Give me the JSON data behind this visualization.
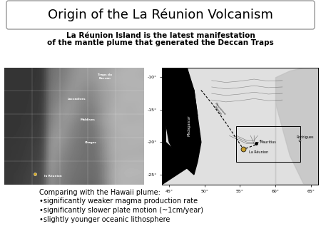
{
  "title": "Origin of the La Réunion Volcanism",
  "subtitle_line1": "La Réunion Island is the latest manifestation",
  "subtitle_line2": "of the mantle plume that generated the Deccan Traps",
  "bullet_header": "Comparing with the Hawaii plume:",
  "bullets": [
    "•significantly weaker magma production rate",
    "•significantly slower plate motion (~1cm/year)",
    "•slightly younger oceanic lithosphere"
  ],
  "slide_bg": "#ffffff",
  "title_box_color": "#ffffff",
  "title_box_edge": "#999999",
  "title_fontsize": 13,
  "subtitle_fontsize": 7.5,
  "bullet_fontsize": 7.0
}
